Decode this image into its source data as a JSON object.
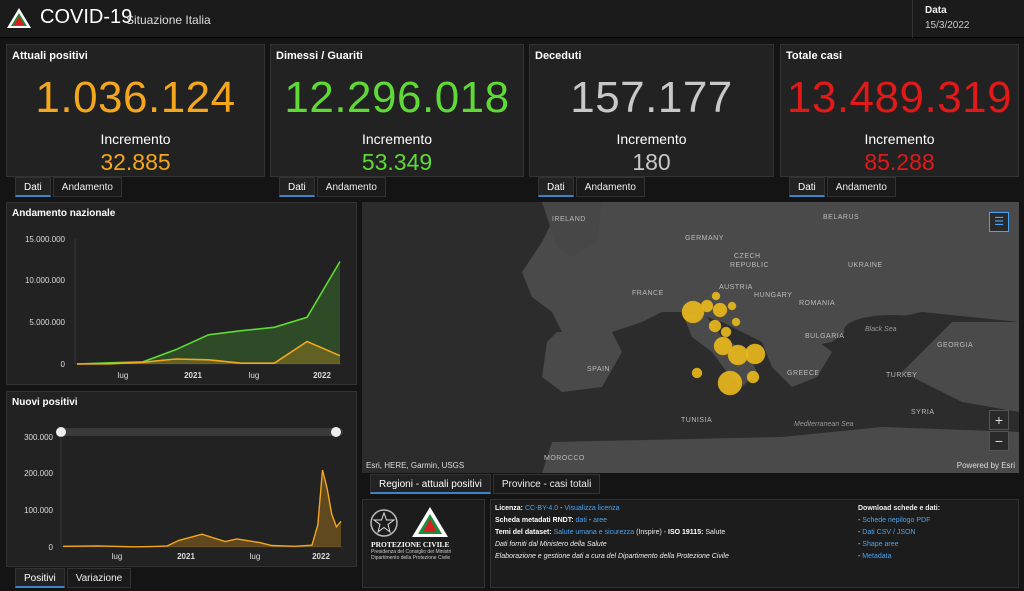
{
  "header": {
    "title": "COVID-19",
    "subtitle": "Situazione Italia",
    "date_label": "Data",
    "date_value": "15/3/2022"
  },
  "colors": {
    "orange": "#f4a71c",
    "green": "#5fd936",
    "gray": "#c8c8c8",
    "red": "#e01919",
    "accent": "#3d83c9"
  },
  "cards": [
    {
      "title": "Attuali positivi",
      "value": "1.036.124",
      "increment_label": "Incremento",
      "increment": "32.885",
      "color": "#f4a71c"
    },
    {
      "title": "Dimessi / Guariti",
      "value": "12.296.018",
      "increment_label": "Incremento",
      "increment": "53.349",
      "color": "#5fd936"
    },
    {
      "title": "Deceduti",
      "value": "157.177",
      "increment_label": "Incremento",
      "increment": "180",
      "color": "#c8c8c8"
    },
    {
      "title": "Totale casi",
      "value": "13.489.319",
      "increment_label": "Incremento",
      "increment": "85.288",
      "color": "#e01919"
    }
  ],
  "card_tabs": [
    "Dati",
    "Andamento"
  ],
  "national_chart": {
    "title": "Andamento nazionale",
    "yticks": [
      "15.000.000",
      "10.000.000",
      "5.000.000",
      "0"
    ],
    "xticks": [
      "lug",
      "2021",
      "lug",
      "2022"
    ]
  },
  "new_pos_chart": {
    "title": "Nuovi positivi",
    "yticks": [
      "300.000",
      "200.000",
      "100.000",
      "0"
    ],
    "xticks": [
      "lug",
      "2021",
      "lug",
      "2022"
    ],
    "tabs": [
      "Positivi",
      "Variazione"
    ]
  },
  "chart_data": [
    {
      "type": "area",
      "title": "Andamento nazionale",
      "x": [
        "2020-03",
        "2020-07",
        "2020-10",
        "2021-01",
        "2021-04",
        "2021-07",
        "2021-10",
        "2022-01",
        "2022-03"
      ],
      "ylim": [
        0,
        15000000
      ],
      "series": [
        {
          "name": "",
          "color": "#5fd936",
          "values": [
            0,
            150000,
            250000,
            1700000,
            3500000,
            4000000,
            4400000,
            5600000,
            12300000
          ]
        },
        {
          "name": "",
          "color": "#f4a71c",
          "values": [
            0,
            20000,
            200000,
            600000,
            500000,
            100000,
            100000,
            2700000,
            1000000
          ]
        }
      ]
    },
    {
      "type": "line",
      "title": "Nuovi positivi",
      "ylim": [
        0,
        300000
      ],
      "x_months": [
        0,
        3,
        6,
        7,
        8,
        9,
        10,
        12,
        14,
        15,
        17,
        18,
        20,
        21.5,
        22,
        22.4,
        22.8,
        23.2,
        23.6,
        24
      ],
      "values": [
        2000,
        3000,
        500,
        800,
        1500,
        3000,
        18000,
        35000,
        15000,
        22000,
        12000,
        4000,
        2000,
        5000,
        60000,
        210000,
        160000,
        90000,
        55000,
        70000
      ],
      "color": "#f4a71c"
    }
  ],
  "map": {
    "labels": [
      "IRELAND",
      "GERMANY",
      "CZECH",
      "REPUBLIC",
      "BELARUS",
      "UKRAINE",
      "FRANCE",
      "AUSTRIA",
      "HUNGARY",
      "ROMANIA",
      "BULGARIA",
      "GEORGIA",
      "SPAIN",
      "GREECE",
      "TURKEY",
      "TUNISIA",
      "SYRIA",
      "MOROCCO"
    ],
    "seas": [
      "Black Sea",
      "Mediterranean Sea"
    ],
    "attribution": "Esri, HERE, Garmin, USGS",
    "powered": "Powered by Esri",
    "tabs": [
      "Regioni - attuali positivi",
      "Province - casi totali"
    ],
    "zoom_in": "+",
    "zoom_out": "−"
  },
  "logo_block": {
    "name": "PROTEZIONE CIVILE",
    "line1": "Presidenza del Consiglio dei Ministri",
    "line2": "Dipartimento della Protezione Civile"
  },
  "info": {
    "licenza_label": "Licenza:",
    "licenza_link": "CC-BY-4.0",
    "licenza_sep": " - ",
    "licenza_link2": "Visualizza licenza",
    "rndt_label": "Scheda metadati RNDT:",
    "rndt_link1": "dati",
    "rndt_link2": "aree",
    "temi_label": "Temi del dataset:",
    "temi_link": "Salute umana e sicurezza",
    "temi_rest": " (Inspire) - ",
    "iso_label": "ISO 19115:",
    "iso_value": " Salute",
    "line4": "Dati forniti dal Ministero della Salute",
    "line5": "Elaborazione e gestione dati a cura del Dipartimento della Protezione Civile",
    "download_title": "Download schede e dati:",
    "downloads": [
      "Schede riepilogo PDF",
      "Dati CSV / JSON",
      "Shape aree",
      "Metadata"
    ]
  }
}
